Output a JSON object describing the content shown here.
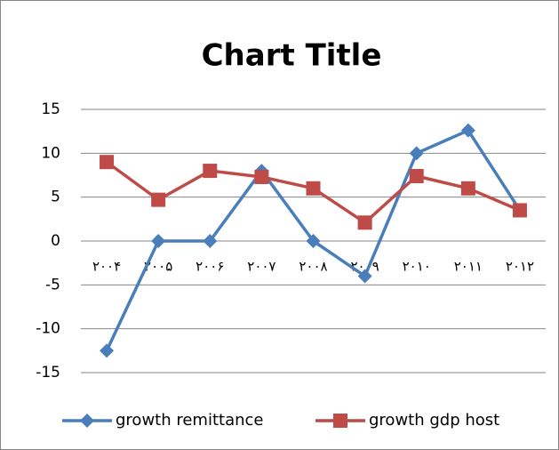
{
  "chart_data": {
    "type": "line",
    "title": "Chart Title",
    "categories": [
      "۲۰۰۴",
      "۲۰۰۵",
      "۲۰۰۶",
      "۲۰۰۷",
      "۲۰۰۸",
      "۲۰۰۹",
      "۲۰۱۰",
      "۲۰۱۱",
      "۲۰۱۲"
    ],
    "series": [
      {
        "name": "growth remittance",
        "color": "#4a7ebb",
        "marker": "diamond",
        "values": [
          -12.5,
          0,
          0,
          8,
          0,
          -4,
          10,
          12.6,
          3.5
        ]
      },
      {
        "name": "growth gdp host",
        "color": "#be4b48",
        "marker": "square",
        "values": [
          9,
          4.7,
          8,
          7.3,
          6,
          2.1,
          7.4,
          6,
          3.5
        ]
      }
    ],
    "ylim": [
      -15,
      15
    ],
    "yticks": [
      -15,
      -10,
      -5,
      0,
      5,
      10,
      15
    ],
    "grid": true,
    "legend": "bottom"
  }
}
